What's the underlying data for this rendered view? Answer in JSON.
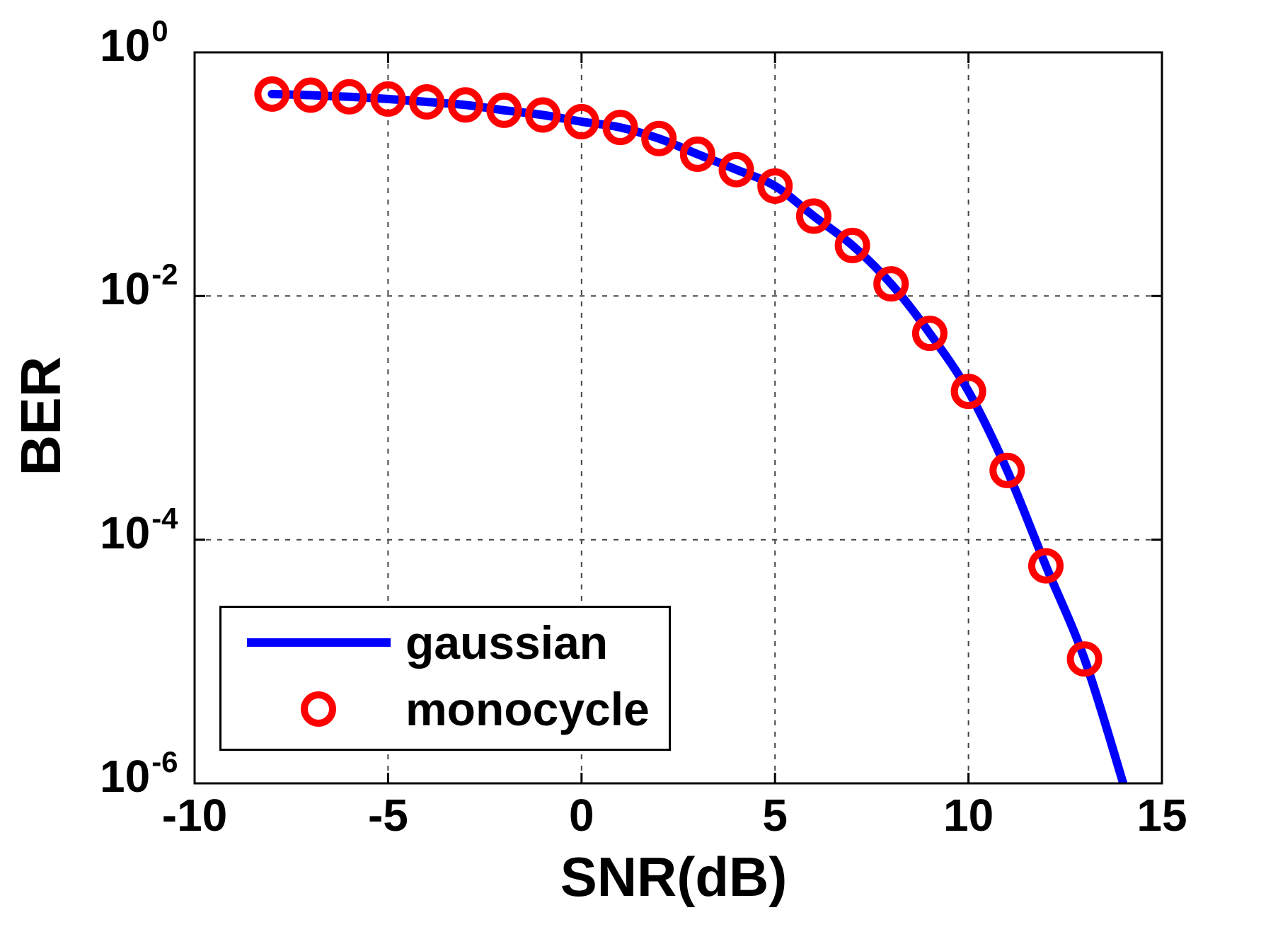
{
  "page": {
    "background": "#ffffff"
  },
  "chart_data": {
    "type": "line",
    "title": "",
    "xlabel": "SNR(dB)",
    "ylabel": "BER",
    "xlim": [
      -10,
      15
    ],
    "y_log10_range": [
      0,
      -6
    ],
    "grid": {
      "style": "dashed",
      "color": "#444444",
      "x_lines": [
        -5,
        0,
        5,
        10
      ],
      "y_lines_log10": [
        -2,
        -4
      ]
    },
    "axis_color": "#000000",
    "x_ticks": [
      {
        "value": -10,
        "label": "-10"
      },
      {
        "value": -5,
        "label": "-5"
      },
      {
        "value": 0,
        "label": "0"
      },
      {
        "value": 5,
        "label": "5"
      },
      {
        "value": 10,
        "label": "10"
      },
      {
        "value": 15,
        "label": "15"
      }
    ],
    "y_ticks": [
      {
        "log10": 0,
        "base": "10",
        "exponent": "0"
      },
      {
        "log10": -2,
        "base": "10",
        "exponent": "-2"
      },
      {
        "log10": -4,
        "base": "10",
        "exponent": "-4"
      },
      {
        "log10": -6,
        "base": "10",
        "exponent": "-6"
      }
    ],
    "series": [
      {
        "name": "gaussian",
        "type": "line",
        "color": "#0000FF",
        "line_width": 12,
        "points": [
          [
            -8,
            0.455
          ],
          [
            -7,
            0.445
          ],
          [
            -6,
            0.432
          ],
          [
            -5,
            0.414
          ],
          [
            -4,
            0.392
          ],
          [
            -3,
            0.37
          ],
          [
            -2,
            0.335
          ],
          [
            -1,
            0.306
          ],
          [
            0,
            0.27
          ],
          [
            1,
            0.242
          ],
          [
            2,
            0.196
          ],
          [
            3,
            0.146
          ],
          [
            4,
            0.109
          ],
          [
            5,
            0.08
          ],
          [
            6,
            0.0453
          ],
          [
            7,
            0.026
          ],
          [
            8,
            0.0126
          ],
          [
            9,
            0.00494
          ],
          [
            10,
            0.00165
          ],
          [
            11,
            0.00037
          ],
          [
            12,
            6.1e-05
          ],
          [
            13,
            1.05e-05
          ],
          [
            14,
            1e-06
          ]
        ]
      },
      {
        "name": "monocycle",
        "type": "scatter",
        "color": "#FF0000",
        "marker": "circle",
        "marker_outer_radius": 25,
        "marker_stroke": 10,
        "points": [
          [
            -8,
            0.455
          ],
          [
            -7,
            0.445
          ],
          [
            -6,
            0.432
          ],
          [
            -5,
            0.414
          ],
          [
            -4,
            0.392
          ],
          [
            -3,
            0.37
          ],
          [
            -2,
            0.335
          ],
          [
            -1,
            0.306
          ],
          [
            0,
            0.27
          ],
          [
            1,
            0.242
          ],
          [
            2,
            0.196
          ],
          [
            3,
            0.146
          ],
          [
            4,
            0.109
          ],
          [
            5,
            0.08
          ],
          [
            6,
            0.0453
          ],
          [
            7,
            0.026
          ],
          [
            8,
            0.0126
          ],
          [
            9,
            0.00494
          ],
          [
            10,
            0.00165
          ],
          [
            11,
            0.00037
          ],
          [
            12,
            6.1e-05
          ],
          [
            13,
            1.05e-05
          ]
        ]
      }
    ],
    "legend": {
      "position": "southwest",
      "items": [
        {
          "label": "gaussian",
          "marker": "line",
          "color": "#0000FF"
        },
        {
          "label": "monocycle",
          "marker": "circle",
          "color": "#FF0000"
        }
      ]
    }
  }
}
